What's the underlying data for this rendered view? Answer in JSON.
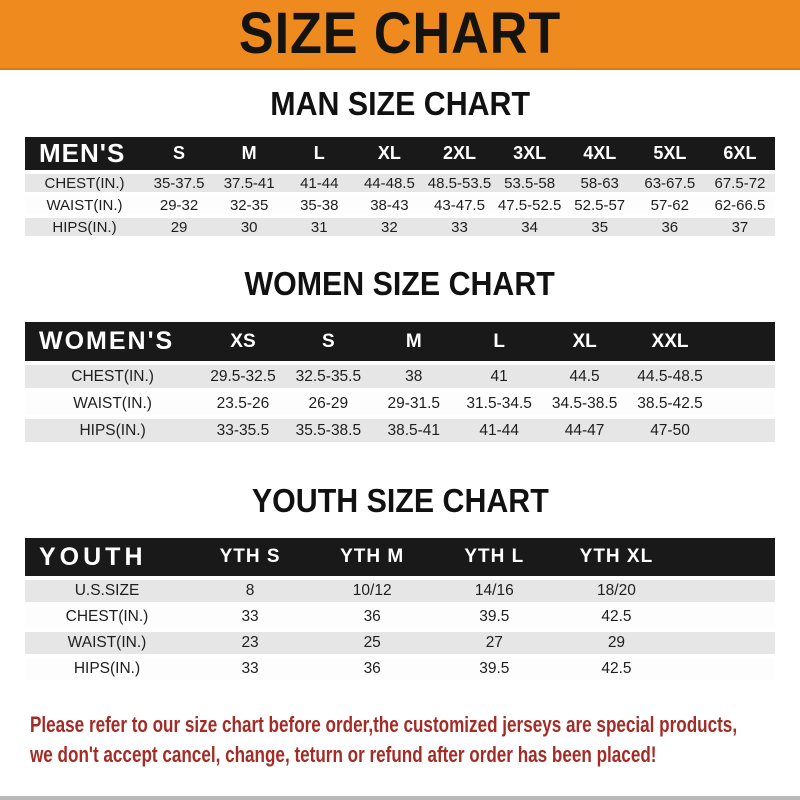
{
  "banner": {
    "title": "SIZE CHART"
  },
  "sections": [
    {
      "heading": "MAN SIZE CHART",
      "table": {
        "corner": "MEN'S",
        "columns": [
          "S",
          "M",
          "L",
          "XL",
          "2XL",
          "3XL",
          "4XL",
          "5XL",
          "6XL"
        ],
        "rows": [
          {
            "label": "CHEST(IN.)",
            "values": [
              "35-37.5",
              "37.5-41",
              "41-44",
              "44-48.5",
              "48.5-53.5",
              "53.5-58",
              "58-63",
              "63-67.5",
              "67.5-72"
            ]
          },
          {
            "label": "WAIST(IN.)",
            "values": [
              "29-32",
              "32-35",
              "35-38",
              "38-43",
              "43-47.5",
              "47.5-52.5",
              "52.5-57",
              "57-62",
              "62-66.5"
            ]
          },
          {
            "label": "HIPS(IN.)",
            "values": [
              "29",
              "30",
              "31",
              "32",
              "33",
              "34",
              "35",
              "36",
              "37"
            ]
          }
        ]
      }
    },
    {
      "heading": "WOMEN SIZE CHART",
      "table": {
        "corner": "WOMEN'S",
        "columns": [
          "XS",
          "S",
          "M",
          "L",
          "XL",
          "XXL"
        ],
        "rows": [
          {
            "label": "CHEST(IN.)",
            "values": [
              "29.5-32.5",
              "32.5-35.5",
              "38",
              "41",
              "44.5",
              "44.5-48.5"
            ]
          },
          {
            "label": "WAIST(IN.)",
            "values": [
              "23.5-26",
              "26-29",
              "29-31.5",
              "31.5-34.5",
              "34.5-38.5",
              "38.5-42.5"
            ]
          },
          {
            "label": "HIPS(IN.)",
            "values": [
              "33-35.5",
              "35.5-38.5",
              "38.5-41",
              "41-44",
              "44-47",
              "47-50"
            ]
          }
        ]
      }
    },
    {
      "heading": "YOUTH SIZE CHART",
      "table": {
        "corner": "YOUTH",
        "columns": [
          "YTH S",
          "YTH M",
          "YTH L",
          "YTH XL"
        ],
        "rows": [
          {
            "label": "U.S.SIZE",
            "values": [
              "8",
              "10/12",
              "14/16",
              "18/20"
            ]
          },
          {
            "label": "CHEST(IN.)",
            "values": [
              "33",
              "36",
              "39.5",
              "42.5"
            ]
          },
          {
            "label": "WAIST(IN.)",
            "values": [
              "23",
              "25",
              "27",
              "29"
            ]
          },
          {
            "label": "HIPS(IN.)",
            "values": [
              "33",
              "36",
              "39.5",
              "42.5"
            ]
          }
        ]
      }
    }
  ],
  "footer": {
    "line1": "Please refer to our size chart before order,the customized jerseys are special products,",
    "line2": "we don't accept cancel, change, teturn or refund after order has been placed!"
  },
  "colors": {
    "banner_orange": "#EE8A1E",
    "header_black": "#191919",
    "row_gray": "#E6E6E6",
    "footer_red": "#A32C26"
  }
}
